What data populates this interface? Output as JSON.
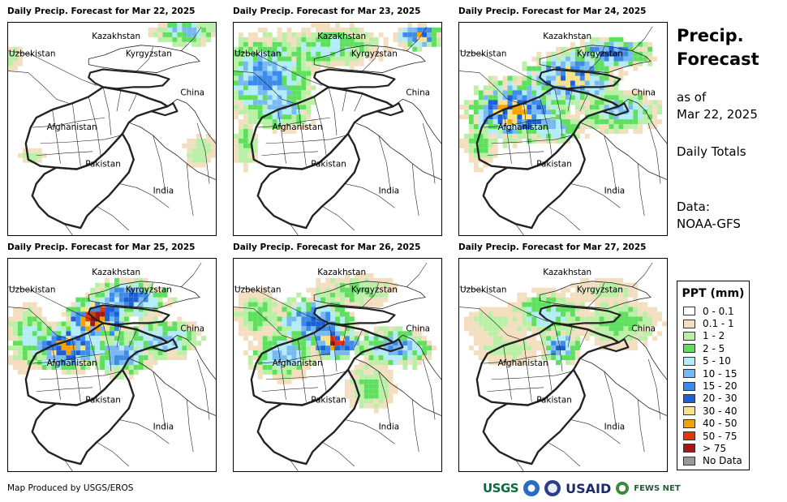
{
  "panels": [
    {
      "title": "Daily Precip. Forecast for Mar 22, 2025",
      "day": 22
    },
    {
      "title": "Daily Precip. Forecast for Mar 23, 2025",
      "day": 23
    },
    {
      "title": "Daily Precip. Forecast for Mar 24, 2025",
      "day": 24
    },
    {
      "title": "Daily Precip. Forecast for Mar 25, 2025",
      "day": 25
    },
    {
      "title": "Daily Precip. Forecast for Mar 26, 2025",
      "day": 26
    },
    {
      "title": "Daily Precip. Forecast for Mar 27, 2025",
      "day": 27
    }
  ],
  "map_labels": {
    "kazakhstan": "Kazakhstan",
    "uzbekistan": "Uzbekistan",
    "kyrgyzstan": "Kyrgyzstan",
    "china": "China",
    "afghanistan": "Afghanistan",
    "pakistan": "Pakistan",
    "india": "India"
  },
  "side": {
    "title_line1": "Precip.",
    "title_line2": "Forecast",
    "asof_line1": "as of",
    "asof_line2": "Mar 22, 2025",
    "totals": "Daily Totals",
    "data_line1": "Data:",
    "data_line2": "NOAA-GFS"
  },
  "legend": {
    "title": "PPT (mm)",
    "items": [
      {
        "label": "0 - 0.1",
        "color": "#ffffff"
      },
      {
        "label": "0.1 - 1",
        "color": "#f3dfc0"
      },
      {
        "label": "1 - 2",
        "color": "#b9f0a6"
      },
      {
        "label": "2 - 5",
        "color": "#5ee05e"
      },
      {
        "label": "5 - 10",
        "color": "#b4ecf6"
      },
      {
        "label": "10 - 15",
        "color": "#79b9f2"
      },
      {
        "label": "15 - 20",
        "color": "#3c8be8"
      },
      {
        "label": "20 - 30",
        "color": "#1d5fd6"
      },
      {
        "label": "30 - 40",
        "color": "#f7e28a"
      },
      {
        "label": "40 - 50",
        "color": "#f5a300"
      },
      {
        "label": "50 - 75",
        "color": "#e8340a"
      },
      {
        "label": "> 75",
        "color": "#a51616"
      },
      {
        "label": "No Data",
        "color": "#999999"
      }
    ]
  },
  "footer": {
    "credit": "Map Produced by USGS/EROS",
    "usgs": "USGS",
    "usaid": "USAID",
    "fews": "FEWS NET"
  }
}
